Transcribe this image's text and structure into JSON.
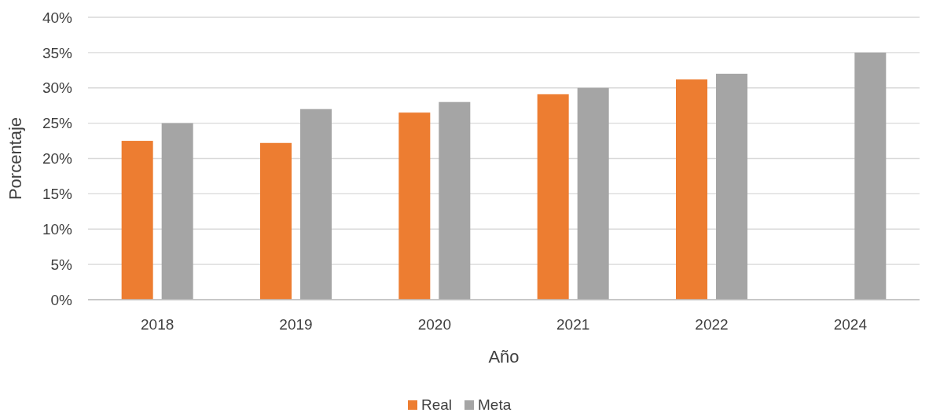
{
  "chart_data": {
    "type": "bar",
    "xlabel": "Año",
    "ylabel": "Porcentaje",
    "categories": [
      "2018",
      "2019",
      "2020",
      "2021",
      "2022",
      "2024"
    ],
    "series": [
      {
        "name": "Real",
        "color": "#ed7d31",
        "values": [
          22.5,
          22.2,
          26.5,
          29.1,
          31.2,
          null
        ]
      },
      {
        "name": "Meta",
        "color": "#a5a5a5",
        "values": [
          25,
          27,
          28,
          30,
          32,
          35
        ]
      }
    ],
    "ylim": [
      0,
      40
    ],
    "yticks": [
      {
        "value": 0,
        "label": "0%"
      },
      {
        "value": 5,
        "label": "5%"
      },
      {
        "value": 10,
        "label": "10%"
      },
      {
        "value": 15,
        "label": "15%"
      },
      {
        "value": 20,
        "label": "20%"
      },
      {
        "value": 25,
        "label": "25%"
      },
      {
        "value": 30,
        "label": "30%"
      },
      {
        "value": 35,
        "label": "35%"
      },
      {
        "value": 40,
        "label": "40%"
      }
    ],
    "grid": "y",
    "legend": "bottom"
  }
}
